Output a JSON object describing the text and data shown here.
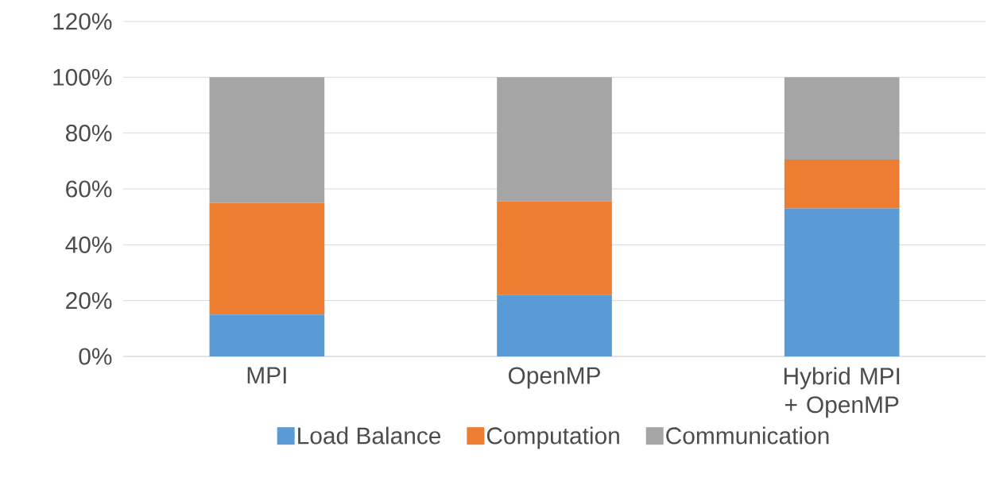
{
  "chart_data": {
    "type": "bar",
    "stacked": true,
    "categories": [
      "MPI",
      "OpenMP",
      "Hybrid MPI + OpenMP"
    ],
    "series": [
      {
        "name": "Load Balance",
        "color": "#5b9bd5",
        "values": [
          15,
          22,
          53
        ]
      },
      {
        "name": "Computation",
        "color": "#ed7d31",
        "values": [
          40,
          33.5,
          17.5
        ]
      },
      {
        "name": "Communication",
        "color": "#a5a5a5",
        "values": [
          45,
          44.5,
          29.5
        ]
      }
    ],
    "ylim": [
      0,
      120
    ],
    "yticks": [
      {
        "value": 0,
        "label": "0%"
      },
      {
        "value": 20,
        "label": "20%"
      },
      {
        "value": 40,
        "label": "40%"
      },
      {
        "value": 60,
        "label": "60%"
      },
      {
        "value": 80,
        "label": "80%"
      },
      {
        "value": 100,
        "label": "100%"
      },
      {
        "value": 120,
        "label": "120%"
      }
    ],
    "grid": "y",
    "legend": "bottom"
  }
}
